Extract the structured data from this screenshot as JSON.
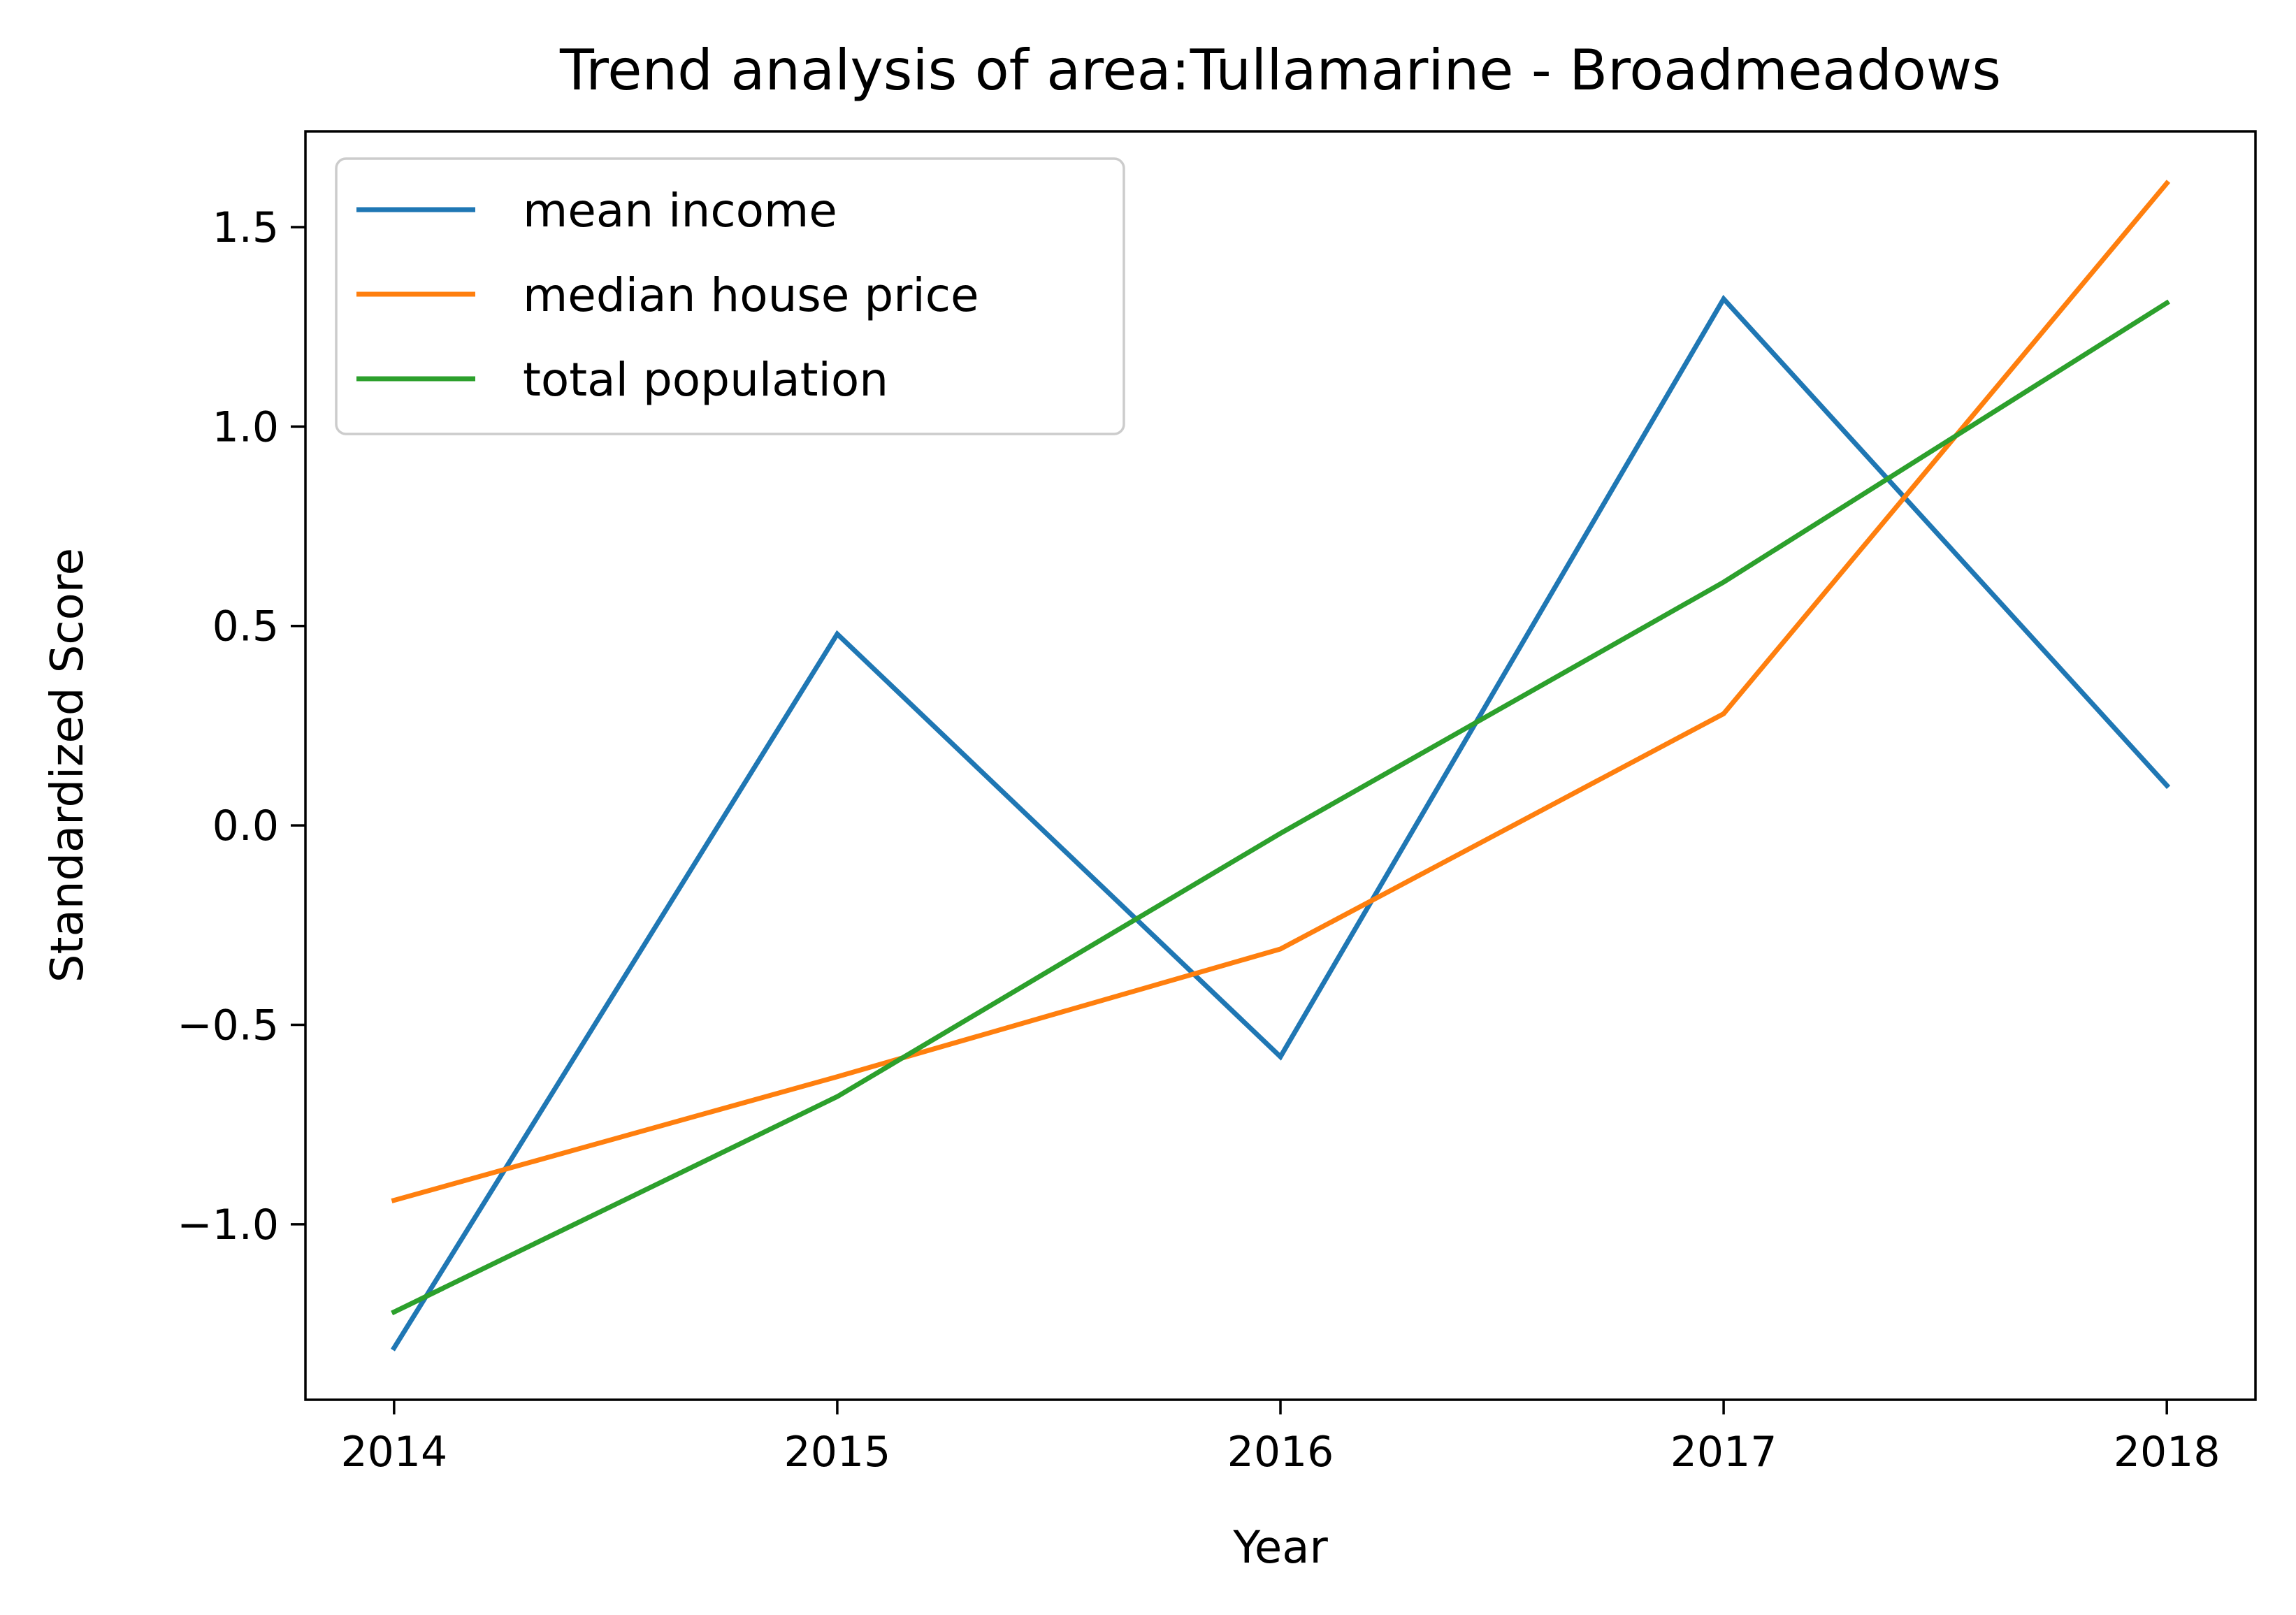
{
  "chart_data": {
    "type": "line",
    "title": "Trend analysis of area:Tullamarine - Broadmeadows",
    "xlabel": "Year",
    "ylabel": "Standardized Score",
    "x": [
      2014,
      2015,
      2016,
      2017,
      2018
    ],
    "xticks": [
      "2014",
      "2015",
      "2016",
      "2017",
      "2018"
    ],
    "yticks": [
      -1.0,
      -0.5,
      0.0,
      0.5,
      1.0,
      1.5
    ],
    "ytick_labels": [
      "−1.0",
      "−0.5",
      "0.0",
      "0.5",
      "1.0",
      "1.5"
    ],
    "xlim": [
      2013.8,
      2018.2
    ],
    "ylim": [
      -1.44,
      1.74
    ],
    "grid": false,
    "legend_position": "upper-left",
    "series": [
      {
        "name": "mean income",
        "color": "#1f77b4",
        "values": [
          -1.31,
          0.48,
          -0.58,
          1.32,
          0.1
        ]
      },
      {
        "name": "median house price",
        "color": "#ff7f0e",
        "values": [
          -0.94,
          -0.63,
          -0.31,
          0.28,
          1.61
        ]
      },
      {
        "name": "total population",
        "color": "#2ca02c",
        "values": [
          -1.22,
          -0.68,
          -0.02,
          0.61,
          1.31
        ]
      }
    ]
  }
}
